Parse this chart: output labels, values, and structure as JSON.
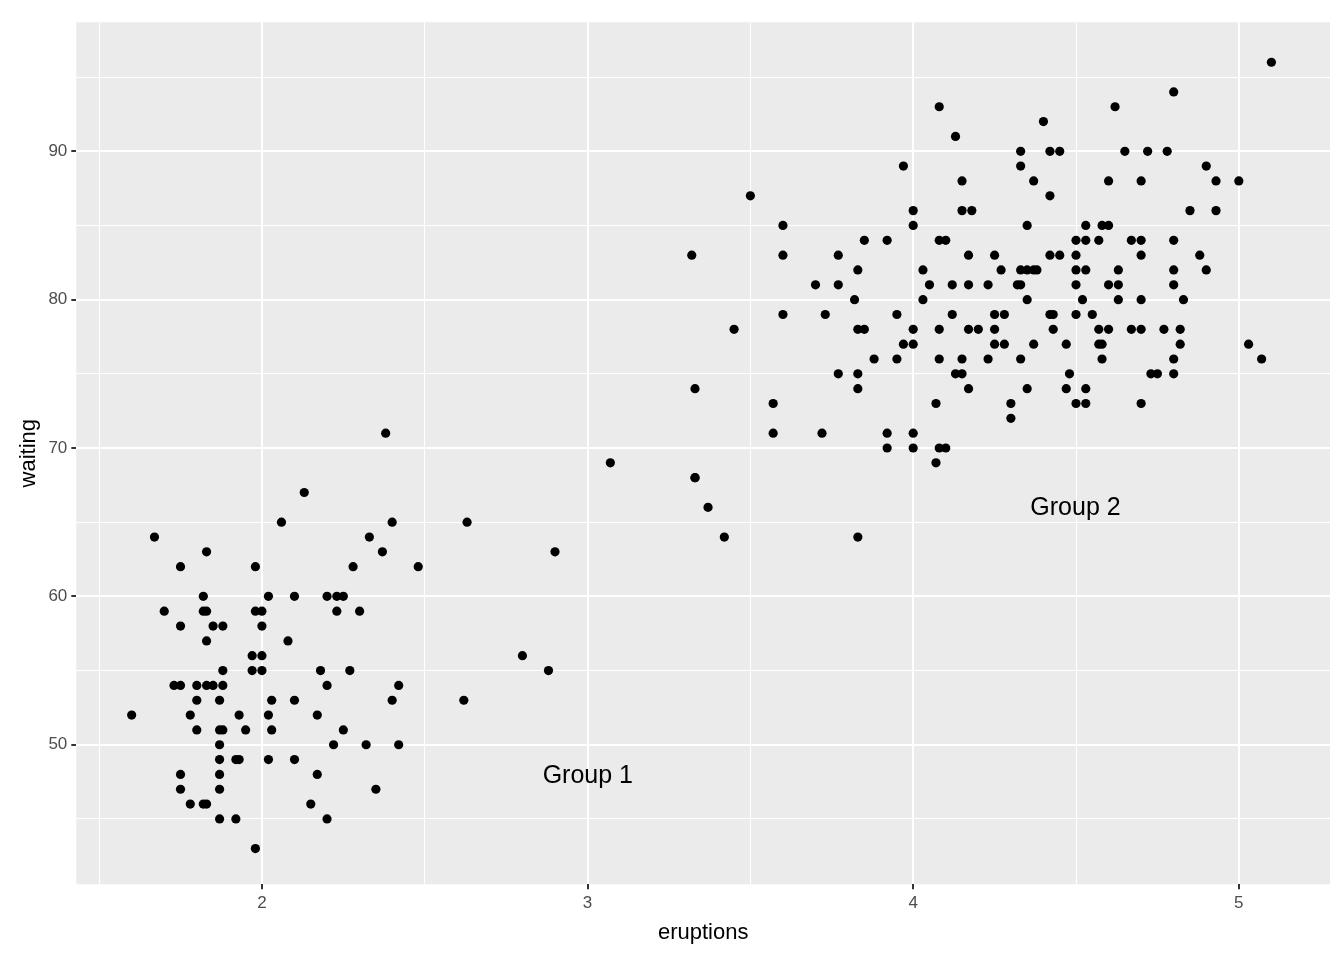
{
  "chart_data": {
    "type": "scatter",
    "xlabel": "eruptions",
    "ylabel": "waiting",
    "color": "#000000",
    "marker": "circle",
    "grid": true,
    "xlim": [
      1.43,
      5.28
    ],
    "ylim": [
      40.6,
      98.7
    ],
    "xticks": [
      {
        "value": 1.5,
        "label": null
      },
      2,
      {
        "value": 2.5,
        "label": null
      },
      3,
      {
        "value": 3.5,
        "label": null
      },
      4,
      {
        "value": 4.5,
        "label": null
      },
      5
    ],
    "yticks": [
      {
        "value": 45,
        "label": null
      },
      50,
      {
        "value": 55,
        "label": null
      },
      60,
      {
        "value": 65,
        "label": null
      },
      70,
      {
        "value": 75,
        "label": null
      },
      80,
      {
        "value": 85,
        "label": null
      },
      90,
      {
        "value": 95,
        "label": null
      }
    ],
    "annotations": [
      "Group 1",
      "Group 2"
    ],
    "x": [
      2.38,
      2.13,
      2.06,
      2.4,
      1.67,
      2.33,
      1.83,
      2.37,
      1.75,
      1.98,
      2.28,
      2.48,
      1.82,
      2.02,
      2.1,
      2.2,
      2.23,
      2.25,
      1.7,
      1.82,
      1.83,
      1.98,
      2.0,
      2.23,
      2.3,
      1.75,
      1.85,
      1.88,
      2.0,
      1.83,
      2.08,
      1.97,
      2.0,
      1.88,
      1.97,
      2.0,
      2.18,
      2.27,
      1.73,
      1.75,
      1.8,
      1.83,
      1.85,
      1.88,
      2.2,
      2.42,
      1.8,
      1.87,
      2.03,
      2.1,
      2.4,
      2.62,
      1.6,
      1.78,
      1.93,
      2.02,
      2.17,
      1.8,
      1.87,
      1.88,
      1.95,
      2.03,
      2.25,
      1.87,
      2.22,
      2.32,
      2.42,
      1.87,
      1.92,
      1.93,
      2.02,
      2.1,
      1.75,
      1.87,
      2.17,
      1.75,
      1.87,
      2.35,
      1.78,
      1.82,
      1.83,
      2.15,
      1.87,
      1.92,
      2.2,
      1.98,
      3.07,
      2.63,
      2.9,
      3.33,
      3.37,
      3.42,
      2.8,
      2.88,
      3.83,
      4.08,
      4.13,
      3.97,
      4.15,
      3.5,
      4.0,
      4.15,
      4.18,
      3.6,
      4.0,
      3.85,
      3.92,
      4.08,
      4.1,
      3.32,
      3.6,
      3.77,
      4.17,
      4.25,
      3.83,
      4.03,
      4.27,
      3.7,
      3.77,
      4.05,
      4.12,
      4.17,
      4.23,
      3.82,
      4.03,
      3.6,
      3.73,
      3.95,
      4.12,
      4.25,
      4.28,
      3.45,
      3.83,
      3.85,
      4.0,
      4.08,
      4.17,
      4.2,
      4.25,
      3.97,
      4.0,
      4.25,
      4.28,
      3.88,
      3.95,
      4.08,
      4.15,
      4.23,
      3.77,
      3.83,
      4.13,
      4.15,
      3.33,
      3.83,
      4.17,
      3.57,
      4.07,
      3.57,
      3.72,
      3.92,
      4.0,
      3.92,
      4.0,
      4.08,
      4.1,
      4.07,
      3.33,
      5.1,
      4.8,
      4.62,
      4.4,
      4.33,
      4.42,
      4.45,
      4.65,
      4.72,
      4.78,
      4.33,
      4.9,
      4.37,
      4.6,
      4.7,
      4.93,
      5.0,
      4.42,
      4.85,
      4.93,
      4.35,
      4.53,
      4.58,
      4.6,
      4.5,
      4.53,
      4.57,
      4.67,
      4.7,
      4.8,
      4.42,
      4.45,
      4.5,
      4.7,
      4.88,
      4.33,
      4.35,
      4.37,
      4.38,
      4.5,
      4.53,
      4.63,
      4.8,
      4.9,
      4.32,
      4.33,
      4.5,
      4.6,
      4.63,
      4.8,
      4.35,
      4.52,
      4.63,
      4.7,
      4.83,
      4.42,
      4.43,
      4.5,
      4.55,
      4.43,
      4.57,
      4.6,
      4.67,
      4.7,
      4.77,
      4.82,
      4.37,
      4.47,
      4.57,
      4.58,
      4.82,
      5.03,
      4.33,
      4.58,
      4.8,
      5.07,
      4.48,
      4.73,
      4.75,
      4.8,
      4.35,
      4.47,
      4.53,
      4.3,
      4.5,
      4.53,
      4.7,
      4.3
    ],
    "values": [
      71,
      67,
      65,
      65,
      64,
      64,
      63,
      63,
      62,
      62,
      62,
      62,
      60,
      60,
      60,
      60,
      60,
      60,
      59,
      59,
      59,
      59,
      59,
      59,
      59,
      58,
      58,
      58,
      58,
      57,
      57,
      56,
      56,
      55,
      55,
      55,
      55,
      55,
      54,
      54,
      54,
      54,
      54,
      54,
      54,
      54,
      53,
      53,
      53,
      53,
      53,
      53,
      52,
      52,
      52,
      52,
      52,
      51,
      51,
      51,
      51,
      51,
      51,
      50,
      50,
      50,
      50,
      49,
      49,
      49,
      49,
      49,
      48,
      48,
      48,
      47,
      47,
      47,
      46,
      46,
      46,
      46,
      45,
      45,
      45,
      43,
      69,
      65,
      63,
      68,
      66,
      64,
      56,
      55,
      64,
      93,
      91,
      89,
      88,
      87,
      86,
      86,
      86,
      85,
      85,
      84,
      84,
      84,
      84,
      83,
      83,
      83,
      83,
      83,
      82,
      82,
      82,
      81,
      81,
      81,
      81,
      81,
      81,
      80,
      80,
      79,
      79,
      79,
      79,
      79,
      79,
      78,
      78,
      78,
      78,
      78,
      78,
      78,
      78,
      77,
      77,
      77,
      77,
      76,
      76,
      76,
      76,
      76,
      75,
      75,
      75,
      75,
      74,
      74,
      74,
      73,
      73,
      71,
      71,
      71,
      71,
      70,
      70,
      70,
      70,
      69,
      68,
      96,
      94,
      93,
      92,
      90,
      90,
      90,
      90,
      90,
      90,
      89,
      89,
      88,
      88,
      88,
      88,
      88,
      87,
      86,
      86,
      85,
      85,
      85,
      85,
      84,
      84,
      84,
      84,
      84,
      84,
      83,
      83,
      83,
      83,
      83,
      82,
      82,
      82,
      82,
      82,
      82,
      82,
      82,
      82,
      81,
      81,
      81,
      81,
      81,
      81,
      80,
      80,
      80,
      80,
      80,
      79,
      79,
      79,
      79,
      78,
      78,
      78,
      78,
      78,
      78,
      78,
      77,
      77,
      77,
      77,
      77,
      77,
      76,
      76,
      76,
      76,
      75,
      75,
      75,
      75,
      74,
      74,
      74,
      73,
      73,
      73,
      73,
      72
    ]
  }
}
